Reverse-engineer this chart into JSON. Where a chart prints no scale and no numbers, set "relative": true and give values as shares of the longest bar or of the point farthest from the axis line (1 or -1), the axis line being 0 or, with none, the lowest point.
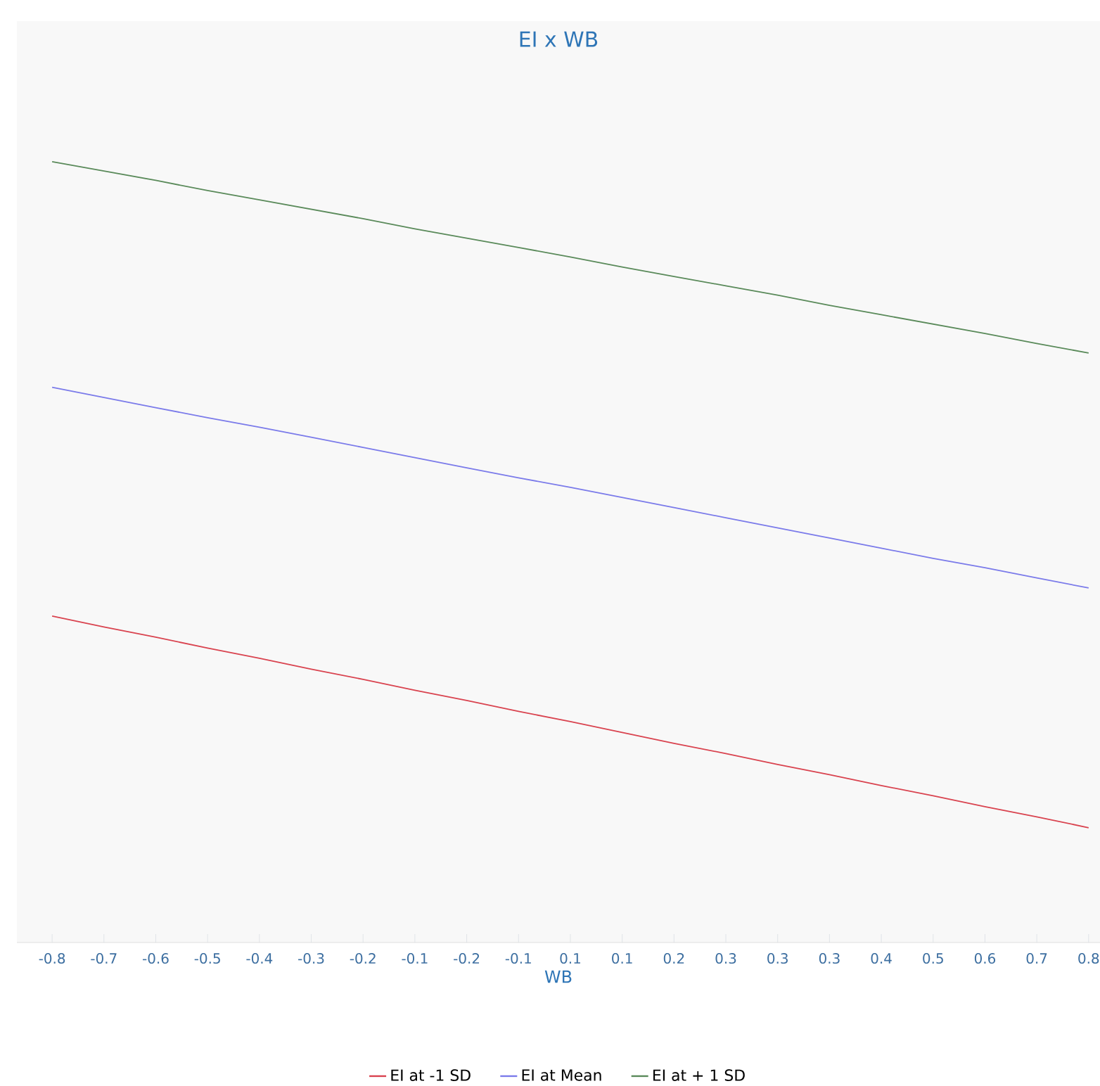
{
  "chart_data": {
    "type": "line",
    "title": "EI x WB",
    "xlabel": "WB",
    "relative": true,
    "legend": "bottom",
    "grid": false,
    "marker": "none",
    "line_style": "solid",
    "categories": [
      "-0.8",
      "-0.7",
      "-0.6",
      "-0.5",
      "-0.4",
      "-0.3",
      "-0.2",
      "-0.1",
      "-0.2",
      "-0.1",
      "0.1",
      "0.1",
      "0.2",
      "0.3",
      "0.3",
      "0.3",
      "0.4",
      "0.5",
      "0.6",
      "0.7",
      "0.8"
    ],
    "series": [
      {
        "name": "EI at -1 SD",
        "color": "#d9434f",
        "values": [
          0.418,
          0.404,
          0.391,
          0.377,
          0.364,
          0.35,
          0.337,
          0.323,
          0.31,
          0.296,
          0.283,
          0.269,
          0.255,
          0.242,
          0.228,
          0.215,
          0.201,
          0.188,
          0.174,
          0.161,
          0.147
        ]
      },
      {
        "name": "EI at Mean",
        "color": "#7b7bea",
        "values": [
          0.711,
          0.698,
          0.685,
          0.672,
          0.66,
          0.647,
          0.634,
          0.621,
          0.608,
          0.595,
          0.583,
          0.57,
          0.557,
          0.544,
          0.531,
          0.518,
          0.505,
          0.492,
          0.48,
          0.467,
          0.454
        ]
      },
      {
        "name": "EI at + 1 SD",
        "color": "#5a8a5a",
        "values": [
          1,
          0.988,
          0.976,
          0.963,
          0.951,
          0.939,
          0.927,
          0.914,
          0.902,
          0.89,
          0.878,
          0.865,
          0.853,
          0.841,
          0.829,
          0.816,
          0.804,
          0.792,
          0.78,
          0.767,
          0.755
        ]
      }
    ]
  }
}
